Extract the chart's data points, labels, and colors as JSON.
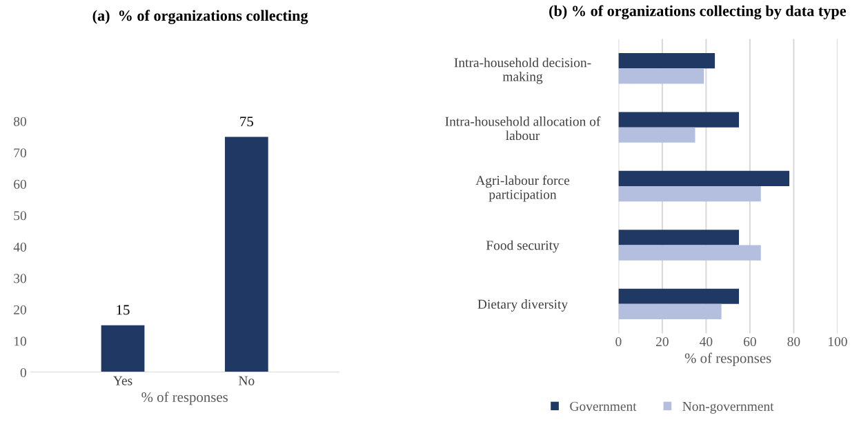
{
  "chart_data": [
    {
      "type": "bar",
      "title": "(a)  % of organizations collecting",
      "xlabel": "% of responses",
      "categories": [
        "Yes",
        "No"
      ],
      "values": [
        15,
        75
      ],
      "color": "#203864",
      "ylim": [
        0,
        80
      ],
      "yticks": [
        0,
        10,
        20,
        30,
        40,
        50,
        60,
        70,
        80
      ],
      "data_labels": true,
      "grid": false
    },
    {
      "type": "bar",
      "orientation": "horizontal",
      "title": "(b) % of organizations collecting by data type",
      "xlabel": "% of responses",
      "categories": [
        "Intra-household decision-\nmaking",
        "Intra-household allocation of\nlabour",
        "Agri-labour force\nparticipation",
        "Food security",
        "Dietary diversity"
      ],
      "series": [
        {
          "name": "Government",
          "color": "#203864",
          "values": [
            44,
            55,
            78,
            55,
            55
          ]
        },
        {
          "name": "Non-government",
          "color": "#b4bfe0",
          "values": [
            39,
            35,
            65,
            65,
            47
          ]
        }
      ],
      "xlim": [
        0,
        100
      ],
      "xticks": [
        0,
        20,
        40,
        60,
        80,
        100
      ],
      "grid": "x",
      "legend": "bottom"
    }
  ]
}
